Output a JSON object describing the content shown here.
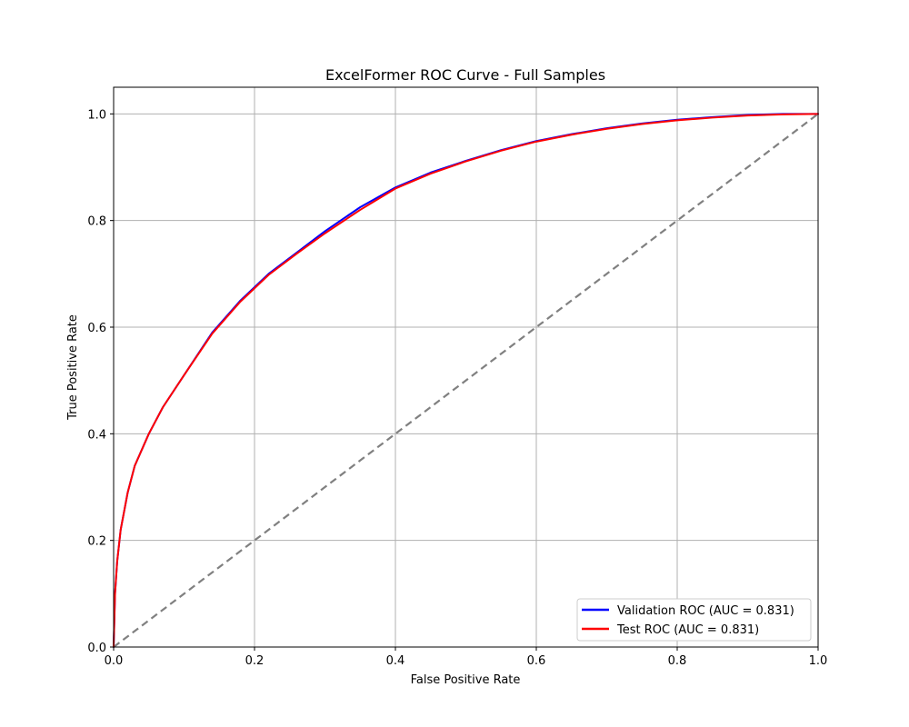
{
  "chart_data": {
    "type": "line",
    "title": "ExcelFormer ROC Curve - Full Samples",
    "xlabel": "False Positive Rate",
    "ylabel": "True Positive Rate",
    "xlim": [
      0.0,
      1.0
    ],
    "ylim": [
      0.0,
      1.05
    ],
    "grid": true,
    "legend_position": "lower-right",
    "x_ticks": [
      "0.0",
      "0.2",
      "0.4",
      "0.6",
      "0.8",
      "1.0"
    ],
    "y_ticks": [
      "0.0",
      "0.2",
      "0.4",
      "0.6",
      "0.8",
      "1.0"
    ],
    "series": [
      {
        "name": "Validation ROC (AUC = 0.831)",
        "color": "#0000ff",
        "x": [
          0.0,
          0.002,
          0.005,
          0.01,
          0.02,
          0.03,
          0.05,
          0.07,
          0.1,
          0.14,
          0.18,
          0.22,
          0.26,
          0.3,
          0.35,
          0.4,
          0.45,
          0.5,
          0.55,
          0.6,
          0.65,
          0.7,
          0.75,
          0.8,
          0.85,
          0.9,
          0.95,
          1.0
        ],
        "y": [
          0.0,
          0.1,
          0.16,
          0.22,
          0.29,
          0.34,
          0.4,
          0.45,
          0.51,
          0.59,
          0.65,
          0.7,
          0.74,
          0.78,
          0.825,
          0.862,
          0.89,
          0.912,
          0.932,
          0.949,
          0.962,
          0.973,
          0.982,
          0.989,
          0.994,
          0.998,
          1.0,
          1.0
        ]
      },
      {
        "name": "Test ROC (AUC = 0.831)",
        "color": "#ff0000",
        "x": [
          0.0,
          0.002,
          0.005,
          0.01,
          0.02,
          0.03,
          0.05,
          0.07,
          0.1,
          0.14,
          0.18,
          0.22,
          0.26,
          0.3,
          0.35,
          0.4,
          0.45,
          0.5,
          0.55,
          0.6,
          0.65,
          0.7,
          0.75,
          0.8,
          0.85,
          0.9,
          0.95,
          1.0
        ],
        "y": [
          0.0,
          0.1,
          0.16,
          0.22,
          0.29,
          0.34,
          0.4,
          0.45,
          0.51,
          0.588,
          0.648,
          0.698,
          0.738,
          0.776,
          0.82,
          0.86,
          0.888,
          0.911,
          0.931,
          0.948,
          0.961,
          0.972,
          0.981,
          0.988,
          0.993,
          0.997,
          0.999,
          1.0
        ]
      }
    ],
    "reference_line": {
      "color": "#808080",
      "x": [
        0.0,
        1.0
      ],
      "y": [
        0.0,
        1.0
      ]
    }
  }
}
